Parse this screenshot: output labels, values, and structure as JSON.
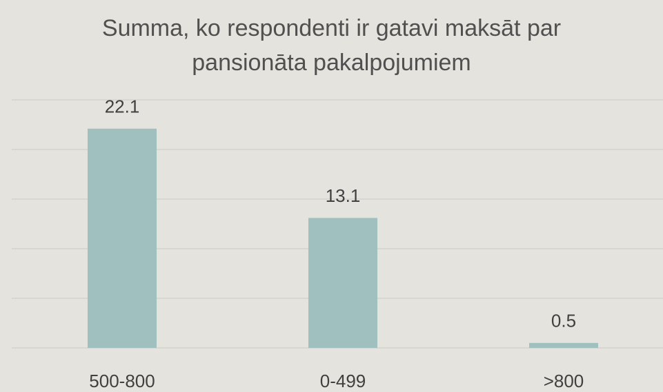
{
  "chart_data": {
    "type": "bar",
    "title": "Summa, ko respondenti ir gatavi maksāt par pansionāta pakalpojumiem",
    "categories": [
      "500-800",
      "0-499",
      ">800"
    ],
    "values": [
      22.1,
      13.1,
      0.5
    ],
    "color": "#9fc0bf",
    "ylim": [
      0,
      25
    ],
    "yticks": [
      0,
      5,
      10,
      15,
      20,
      25
    ],
    "grid": true
  }
}
